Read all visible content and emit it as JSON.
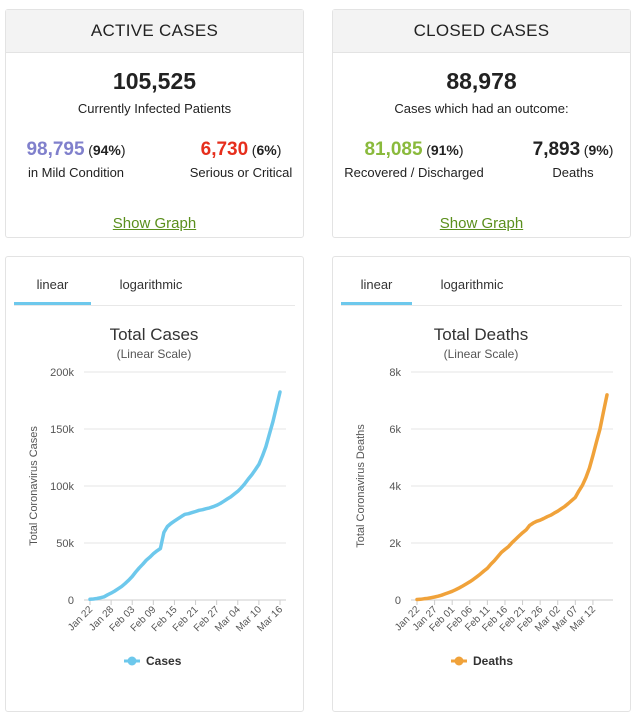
{
  "active": {
    "title": "ACTIVE CASES",
    "total": "105,525",
    "total_label": "Currently Infected Patients",
    "mild": {
      "value": "98,795",
      "pct": "94%",
      "label": "in Mild Condition",
      "color": "#8080cc"
    },
    "serious": {
      "value": "6,730",
      "pct": "6%",
      "label": "Serious or Critical",
      "color": "#e62e1c"
    },
    "link": "Show Graph"
  },
  "closed": {
    "title": "CLOSED CASES",
    "total": "88,978",
    "total_label": "Cases which had an outcome:",
    "recovered": {
      "value": "81,085",
      "pct": "91%",
      "label": "Recovered / Discharged",
      "color": "#8aba3c"
    },
    "deaths": {
      "value": "7,893",
      "pct": "9%",
      "label": "Deaths",
      "color": "#222222"
    },
    "link": "Show Graph"
  },
  "chart_cases": {
    "tabs": [
      "linear",
      "logarithmic"
    ],
    "active_tab": "linear"
  },
  "chart_deaths": {
    "tabs": [
      "linear",
      "logarithmic"
    ],
    "active_tab": "linear"
  },
  "chart_data": [
    {
      "type": "line",
      "title": "Total Cases",
      "subtitle": "(Linear Scale)",
      "xlabel": "",
      "ylabel": "Total Coronavirus Cases",
      "ylim": [
        0,
        200000
      ],
      "y_ticks": [
        "0",
        "50k",
        "100k",
        "150k",
        "200k"
      ],
      "y_tick_values": [
        0,
        50000,
        100000,
        150000,
        200000
      ],
      "x_tick_labels": [
        "Jan 22",
        "Jan 28",
        "Feb 03",
        "Feb 09",
        "Feb 15",
        "Feb 21",
        "Feb 27",
        "Mar 04",
        "Mar 10",
        "Mar 16"
      ],
      "x_tick_index": [
        0,
        6,
        12,
        18,
        24,
        30,
        36,
        42,
        48,
        54
      ],
      "color": "#6dc8ec",
      "legend": "bottom",
      "series": [
        {
          "name": "Cases",
          "values": [
            580,
            845,
            1317,
            2015,
            2800,
            4581,
            6058,
            7813,
            9823,
            11950,
            14553,
            17391,
            20630,
            24545,
            28266,
            31439,
            34876,
            37552,
            40553,
            43099,
            45134,
            59287,
            64438,
            67100,
            69197,
            71329,
            73332,
            75184,
            75700,
            76677,
            77673,
            78651,
            79205,
            80087,
            80828,
            81820,
            83112,
            84615,
            86604,
            88585,
            90443,
            93016,
            95314,
            98425,
            102050,
            106099,
            109991,
            114381,
            118948,
            126214,
            134576,
            145483,
            156653,
            169593,
            182490
          ]
        }
      ]
    },
    {
      "type": "line",
      "title": "Total Deaths",
      "subtitle": "(Linear Scale)",
      "xlabel": "",
      "ylabel": "Total Coronavirus Deaths",
      "ylim": [
        0,
        8000
      ],
      "y_ticks": [
        "0",
        "2k",
        "4k",
        "6k",
        "8k"
      ],
      "y_tick_values": [
        0,
        2000,
        4000,
        6000,
        8000
      ],
      "x_tick_labels": [
        "Jan 22",
        "Jan 27",
        "Feb 01",
        "Feb 06",
        "Feb 11",
        "Feb 16",
        "Feb 21",
        "Feb 26",
        "Mar 02",
        "Mar 07",
        "Mar 12"
      ],
      "x_tick_index": [
        0,
        5,
        10,
        15,
        20,
        25,
        30,
        35,
        40,
        45,
        50
      ],
      "color": "#f0a23a",
      "legend": "bottom",
      "series": [
        {
          "name": "Deaths",
          "values": [
            17,
            25,
            41,
            56,
            80,
            106,
            132,
            170,
            213,
            259,
            304,
            362,
            426,
            492,
            565,
            638,
            724,
            813,
            910,
            1018,
            1115,
            1261,
            1383,
            1526,
            1669,
            1775,
            1873,
            2009,
            2126,
            2247,
            2360,
            2460,
            2618,
            2699,
            2763,
            2800,
            2858,
            2923,
            2977,
            3050,
            3117,
            3202,
            3285,
            3387,
            3494,
            3599,
            3827,
            4025,
            4296,
            4628,
            5066,
            5537,
            6003,
            6606,
            7197
          ]
        }
      ]
    }
  ]
}
